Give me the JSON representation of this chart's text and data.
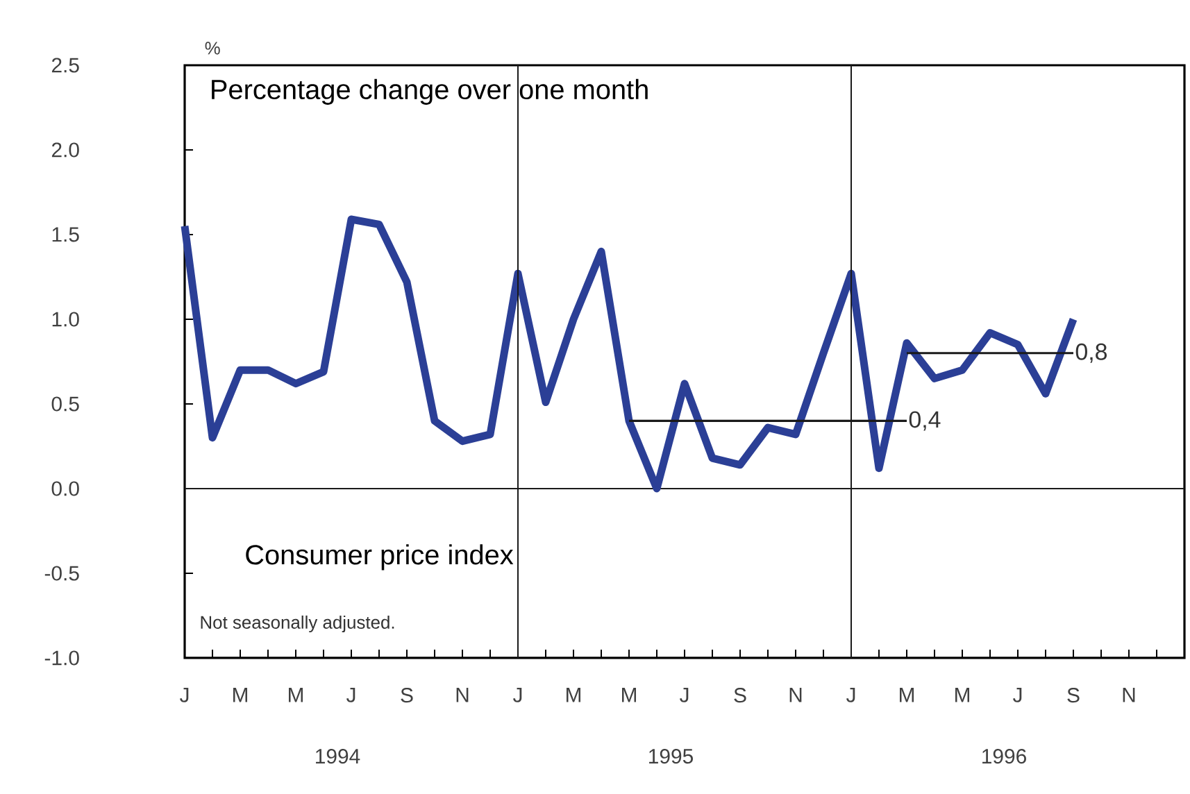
{
  "chart_data": {
    "type": "line",
    "title": "Consumer price index",
    "subtitle": "Percentage change over one month",
    "ylabel": "%",
    "annotations": [
      "Not seasonally adjusted.",
      "1994",
      "1995",
      "1996"
    ],
    "categories": [
      "J",
      null,
      "M",
      null,
      "M",
      null,
      "J",
      null,
      "S",
      null,
      "N",
      null,
      "J",
      null,
      "M",
      null,
      "M",
      null,
      "J",
      null,
      "S",
      null,
      "N",
      null,
      "J",
      null,
      "M",
      null,
      "M",
      null,
      "J",
      null,
      "S",
      null,
      "N",
      null
    ],
    "series": [
      {
        "color": "#2b3f96",
        "values": [
          1.55,
          0.3,
          0.7,
          0.7,
          0.62,
          0.69,
          1.59,
          1.56,
          1.22,
          0.4,
          0.28,
          0.32,
          1.27,
          0.51,
          1.0,
          1.4,
          0.4,
          0.0,
          0.62,
          0.18,
          0.14,
          0.36,
          0.32,
          0.8,
          1.27,
          0.12,
          0.86,
          0.65,
          0.7,
          0.92,
          0.85,
          0.56,
          1.0,
          null,
          null,
          null
        ]
      },
      {
        "name": "0,4",
        "color": "#1a1a1a",
        "values": [
          null,
          null,
          null,
          null,
          null,
          null,
          null,
          null,
          null,
          null,
          null,
          null,
          null,
          null,
          null,
          null,
          0.4,
          0.4,
          0.4,
          0.4,
          0.4,
          0.4,
          0.4,
          0.4,
          0.4,
          0.4,
          0.4,
          null,
          null,
          null,
          null,
          null,
          null,
          null,
          null,
          null
        ]
      },
      {
        "name": "0,8",
        "color": "#1a1a1a",
        "values": [
          null,
          null,
          null,
          null,
          null,
          null,
          null,
          null,
          null,
          null,
          null,
          null,
          null,
          null,
          null,
          null,
          null,
          null,
          null,
          null,
          null,
          null,
          null,
          null,
          null,
          null,
          0.8,
          0.8,
          0.8,
          0.8,
          0.8,
          0.8,
          0.8,
          null,
          null,
          null
        ]
      }
    ],
    "ref_lines": [
      {
        "axis": "y",
        "value": 0,
        "color": "#1a1a1a"
      }
    ],
    "ylim": [
      -1,
      2.5
    ],
    "yticks": [
      {
        "value": -1,
        "label": "-1.0"
      },
      -0.5,
      {
        "value": 0,
        "label": "0.0"
      },
      0.5,
      {
        "value": 1,
        "label": "1.0"
      },
      1.5,
      {
        "value": 2,
        "label": "2.0"
      },
      2.5
    ],
    "grid": false
  }
}
